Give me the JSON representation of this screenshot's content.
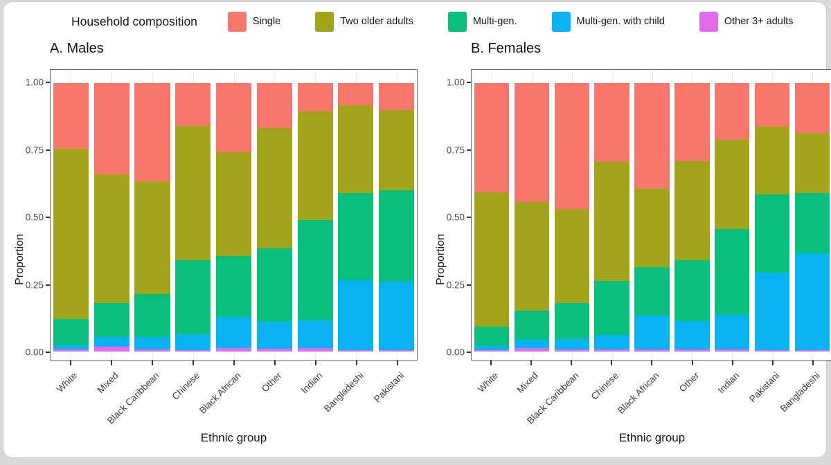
{
  "legend": {
    "title": "Household composition",
    "items": [
      {
        "label": "Single",
        "color": "#F7776C"
      },
      {
        "label": "Two older adults",
        "color": "#A2A41B"
      },
      {
        "label": "Multi-gen.",
        "color": "#0ABF7C"
      },
      {
        "label": "Multi-gen. with child",
        "color": "#09B2F1"
      },
      {
        "label": "Other 3+ adults",
        "color": "#E06CEC"
      }
    ]
  },
  "chart_data": {
    "type": "bar",
    "subtype": "stacked_proportion",
    "legend_title": "Household composition",
    "legend_position": "top",
    "grid": "faint-vertical",
    "stack_order_bottom_to_top": [
      "Other 3+ adults",
      "Multi-gen. with child",
      "Multi-gen.",
      "Two older adults",
      "Single"
    ],
    "colors": {
      "Single": "#F7776C",
      "Two older adults": "#A2A41B",
      "Multi-gen.": "#0ABF7C",
      "Multi-gen. with child": "#09B2F1",
      "Other 3+ adults": "#E06CEC"
    },
    "y_axis": {
      "label": "Proportion",
      "ticks": [
        "1.00",
        "0.75",
        "0.50",
        "0.25",
        "0.00"
      ],
      "range": [
        0,
        1
      ]
    },
    "x_axis_label": "Ethnic group",
    "panels": [
      {
        "title": "A. Males",
        "categories": [
          "White",
          "Mixed",
          "Black Caribbean",
          "Chinese",
          "Black African",
          "Other",
          "Indian",
          "Bangladeshi",
          "Pakistani"
        ],
        "series": [
          {
            "name": "Single",
            "values": [
              0.245,
              0.34,
              0.365,
              0.16,
              0.258,
              0.167,
              0.105,
              0.083,
              0.1
            ]
          },
          {
            "name": "Two older adults",
            "values": [
              0.635,
              0.48,
              0.422,
              0.5,
              0.387,
              0.448,
              0.405,
              0.327,
              0.3
            ]
          },
          {
            "name": "Multi-gen.",
            "values": [
              0.098,
              0.125,
              0.158,
              0.275,
              0.227,
              0.275,
              0.375,
              0.325,
              0.34
            ]
          },
          {
            "name": "Multi-gen. with child",
            "values": [
              0.015,
              0.037,
              0.047,
              0.059,
              0.114,
              0.1,
              0.103,
              0.26,
              0.255
            ]
          },
          {
            "name": "Other 3+ adults",
            "values": [
              0.007,
              0.018,
              0.008,
              0.006,
              0.014,
              0.01,
              0.012,
              0.005,
              0.005
            ]
          }
        ]
      },
      {
        "title": "B. Females",
        "categories": [
          "White",
          "Mixed",
          "Black Caribbean",
          "Chinese",
          "Black African",
          "Other",
          "Indian",
          "Pakistani",
          "Bangladeshi"
        ],
        "series": [
          {
            "name": "Single",
            "values": [
              0.407,
              0.444,
              0.47,
              0.294,
              0.393,
              0.29,
              0.21,
              0.162,
              0.185
            ]
          },
          {
            "name": "Two older adults",
            "values": [
              0.501,
              0.405,
              0.35,
              0.443,
              0.292,
              0.37,
              0.334,
              0.253,
              0.225
            ]
          },
          {
            "name": "Multi-gen.",
            "values": [
              0.072,
              0.108,
              0.134,
              0.2,
              0.182,
              0.227,
              0.32,
              0.29,
              0.225
            ]
          },
          {
            "name": "Multi-gen. with child",
            "values": [
              0.015,
              0.03,
              0.038,
              0.055,
              0.125,
              0.105,
              0.128,
              0.29,
              0.36
            ]
          },
          {
            "name": "Other 3+ adults",
            "values": [
              0.005,
              0.013,
              0.008,
              0.008,
              0.008,
              0.008,
              0.008,
              0.005,
              0.005
            ]
          }
        ]
      }
    ]
  }
}
